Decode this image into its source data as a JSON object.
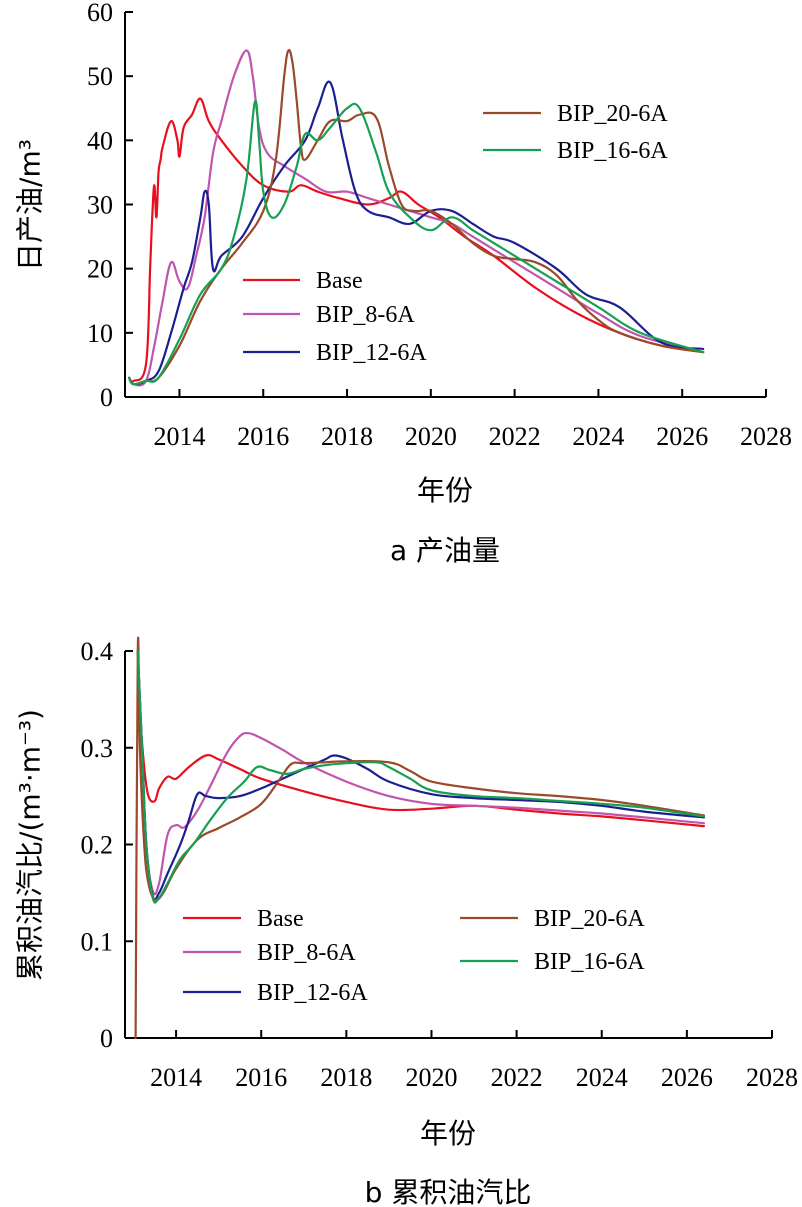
{
  "colors": {
    "Base": "#e8101e",
    "BIP_8-6A": "#c055b0",
    "BIP_12-6A": "#1b1f8f",
    "BIP_20-6A": "#9a4a2a",
    "BIP_16-6A": "#17a052"
  },
  "chart_data": [
    {
      "type": "line",
      "caption": "a 产油量",
      "xlabel": "年份",
      "ylabel": "日产油/m³",
      "xlim": [
        2012.7,
        2028
      ],
      "ylim": [
        0,
        60
      ],
      "xticks": [
        2014,
        2016,
        2018,
        2020,
        2022,
        2024,
        2026,
        2028
      ],
      "yticks": [
        0,
        10,
        20,
        30,
        40,
        50,
        60
      ],
      "xtick_labels": [
        "2014",
        "2016",
        "2018",
        "2020",
        "2022",
        "2024",
        "2026",
        "2028"
      ],
      "ytick_labels": [
        "0",
        "10",
        "20",
        "30",
        "40",
        "50",
        "60"
      ],
      "legend": [
        {
          "name": "Base"
        },
        {
          "name": "BIP_8-6A"
        },
        {
          "name": "BIP_12-6A"
        },
        {
          "name": "BIP_20-6A"
        },
        {
          "name": "BIP_16-6A"
        }
      ],
      "series": [
        {
          "name": "Base",
          "x": [
            2012.8,
            2012.9,
            2013.2,
            2013.3,
            2013.35,
            2013.4,
            2013.45,
            2013.5,
            2013.55,
            2013.6,
            2013.8,
            2013.95,
            2014.0,
            2014.1,
            2014.3,
            2014.5,
            2014.7,
            2015.0,
            2015.5,
            2016.0,
            2016.6,
            2016.9,
            2017.3,
            2017.8,
            2018.5,
            2019.0,
            2019.3,
            2019.7,
            2020.2,
            2020.8,
            2021.5,
            2022.5,
            2023.5,
            2024.5,
            2025.5,
            2026.5
          ],
          "y": [
            3,
            2.5,
            5,
            20,
            28,
            33,
            28,
            35,
            37,
            39,
            43,
            40,
            37.5,
            42,
            44,
            46.5,
            43,
            40,
            36,
            33,
            32,
            33,
            32,
            31,
            30,
            31,
            32,
            30,
            28,
            25,
            22,
            17,
            13,
            10,
            8,
            7
          ]
        },
        {
          "name": "BIP_8-6A",
          "x": [
            2012.8,
            2012.9,
            2013.2,
            2013.4,
            2013.6,
            2013.8,
            2014.0,
            2014.2,
            2014.4,
            2014.6,
            2014.8,
            2015.0,
            2015.3,
            2015.6,
            2015.75,
            2015.9,
            2016.1,
            2016.5,
            2017.0,
            2017.5,
            2018.0,
            2018.5,
            2019.0,
            2019.5,
            2020.0,
            2020.5,
            2021.0,
            2022.0,
            2023.0,
            2024.0,
            2025.0,
            2026.5
          ],
          "y": [
            3,
            2,
            2.5,
            8,
            15,
            21,
            18,
            17,
            22,
            28,
            38,
            43,
            50,
            54,
            50,
            42,
            38,
            36,
            34,
            32,
            32,
            31,
            30,
            29,
            28,
            27,
            25,
            21,
            17,
            13,
            9.5,
            7
          ]
        },
        {
          "name": "BIP_12-6A",
          "x": [
            2012.8,
            2012.9,
            2013.2,
            2013.5,
            2013.8,
            2014.1,
            2014.3,
            2014.5,
            2014.6,
            2014.7,
            2014.8,
            2015.0,
            2015.5,
            2016.0,
            2016.5,
            2017.0,
            2017.3,
            2017.6,
            2017.9,
            2018.2,
            2018.5,
            2019.0,
            2019.5,
            2020.0,
            2020.5,
            2021.0,
            2021.5,
            2022.0,
            2023.0,
            2023.7,
            2024.5,
            2025.5,
            2026.5
          ],
          "y": [
            3,
            2,
            2.5,
            4,
            10,
            17,
            21,
            28,
            32,
            30,
            20,
            22,
            25,
            31,
            36,
            40,
            45,
            49,
            40,
            32,
            29,
            28,
            27,
            29,
            29,
            27,
            25,
            24,
            20,
            16,
            14,
            8.5,
            7.5
          ]
        },
        {
          "name": "BIP_20-6A",
          "x": [
            2012.8,
            2012.9,
            2013.2,
            2013.5,
            2014.0,
            2014.5,
            2015.0,
            2015.5,
            2016.0,
            2016.3,
            2016.5,
            2016.6,
            2016.7,
            2016.8,
            2016.9,
            2017.0,
            2017.3,
            2017.6,
            2018.0,
            2018.3,
            2018.7,
            2019.0,
            2019.3,
            2019.6,
            2020.0,
            2020.5,
            2021.0,
            2021.5,
            2022.0,
            2022.5,
            2023.0,
            2023.5,
            2024.0,
            2024.5,
            2025.5,
            2026.5
          ],
          "y": [
            3,
            2,
            2.5,
            3,
            8,
            15,
            20,
            24,
            29,
            37,
            50,
            54,
            52,
            46,
            39,
            37,
            40,
            43,
            43,
            44,
            43.5,
            36,
            30,
            29,
            29,
            27,
            24,
            22,
            21.5,
            21,
            19,
            15,
            12,
            10,
            8,
            7
          ]
        },
        {
          "name": "BIP_16-6A",
          "x": [
            2012.8,
            2012.9,
            2013.2,
            2013.5,
            2014.0,
            2014.5,
            2015.0,
            2015.3,
            2015.6,
            2015.8,
            2015.9,
            2016.0,
            2016.2,
            2016.5,
            2016.8,
            2017.0,
            2017.3,
            2017.6,
            2018.0,
            2018.3,
            2018.7,
            2019.0,
            2019.5,
            2020.0,
            2020.5,
            2021.0,
            2021.5,
            2022.0,
            2023.0,
            2024.0,
            2025.0,
            2026.5
          ],
          "y": [
            3,
            2,
            2.5,
            3,
            9,
            16,
            20,
            25,
            34,
            46,
            40,
            32,
            28,
            30,
            36,
            41,
            40,
            42,
            45,
            45,
            38,
            32,
            28,
            26,
            28,
            26,
            24,
            22,
            18,
            14,
            10,
            7
          ]
        }
      ]
    },
    {
      "type": "line",
      "caption": "b 累积油汽比",
      "xlabel": "年份",
      "ylabel": "累积油汽比/(m³·m⁻³)",
      "xlim": [
        2012.8,
        2028
      ],
      "ylim": [
        0,
        0.4
      ],
      "xticks": [
        2014,
        2016,
        2018,
        2020,
        2022,
        2024,
        2026,
        2028
      ],
      "yticks": [
        0,
        0.1,
        0.2,
        0.3,
        0.4
      ],
      "xtick_labels": [
        "2014",
        "2016",
        "2018",
        "2020",
        "2022",
        "2024",
        "2026",
        "2028"
      ],
      "ytick_labels": [
        "0",
        "0.1",
        "0.2",
        "0.3",
        "0.4"
      ],
      "legend": [
        {
          "name": "Base"
        },
        {
          "name": "BIP_8-6A"
        },
        {
          "name": "BIP_12-6A"
        },
        {
          "name": "BIP_20-6A"
        },
        {
          "name": "BIP_16-6A"
        }
      ],
      "series": [
        {
          "name": "Base",
          "x": [
            2013.1,
            2013.15,
            2013.25,
            2013.35,
            2013.5,
            2013.6,
            2013.8,
            2014.0,
            2014.3,
            2014.7,
            2015.0,
            2015.5,
            2016.0,
            2017.0,
            2018.0,
            2019.0,
            2020.0,
            2021.0,
            2022.0,
            2023.0,
            2024.0,
            2025.0,
            2026.4
          ],
          "y": [
            0.4,
            0.34,
            0.28,
            0.25,
            0.245,
            0.258,
            0.27,
            0.268,
            0.28,
            0.292,
            0.288,
            0.278,
            0.268,
            0.255,
            0.244,
            0.236,
            0.237,
            0.24,
            0.236,
            0.232,
            0.229,
            0.225,
            0.219
          ]
        },
        {
          "name": "BIP_8-6A",
          "x": [
            2013.1,
            2013.2,
            2013.3,
            2013.45,
            2013.6,
            2013.8,
            2014.0,
            2014.2,
            2014.5,
            2014.8,
            2015.2,
            2015.5,
            2015.7,
            2016.0,
            2016.5,
            2017.0,
            2018.0,
            2019.0,
            2020.0,
            2021.0,
            2022.0,
            2023.0,
            2024.0,
            2025.0,
            2026.4
          ],
          "y": [
            0.4,
            0.3,
            0.2,
            0.152,
            0.16,
            0.21,
            0.22,
            0.218,
            0.235,
            0.26,
            0.295,
            0.312,
            0.315,
            0.31,
            0.298,
            0.285,
            0.265,
            0.25,
            0.242,
            0.24,
            0.238,
            0.235,
            0.232,
            0.228,
            0.222
          ]
        },
        {
          "name": "BIP_12-6A",
          "x": [
            2013.1,
            2013.2,
            2013.3,
            2013.45,
            2013.6,
            2013.8,
            2014.1,
            2014.3,
            2014.5,
            2014.7,
            2015.0,
            2015.5,
            2016.0,
            2016.5,
            2017.0,
            2017.5,
            2017.7,
            2018.0,
            2018.5,
            2019.0,
            2020.0,
            2021.0,
            2022.0,
            2023.0,
            2024.0,
            2025.0,
            2026.4
          ],
          "y": [
            0.4,
            0.3,
            0.2,
            0.147,
            0.15,
            0.17,
            0.2,
            0.225,
            0.252,
            0.25,
            0.248,
            0.25,
            0.258,
            0.268,
            0.278,
            0.288,
            0.292,
            0.289,
            0.278,
            0.265,
            0.252,
            0.248,
            0.246,
            0.244,
            0.24,
            0.234,
            0.228
          ]
        },
        {
          "name": "BIP_20-6A",
          "x": [
            2013.05,
            2013.1,
            2013.15,
            2013.25,
            2013.35,
            2013.5,
            2013.7,
            2014.0,
            2014.5,
            2015.0,
            2015.5,
            2016.0,
            2016.4,
            2016.7,
            2017.0,
            2017.5,
            2018.0,
            2019.0,
            2019.5,
            2020.0,
            2021.0,
            2022.0,
            2023.0,
            2024.0,
            2025.0,
            2026.4
          ],
          "y": [
            0.0,
            0.4,
            0.3,
            0.2,
            0.16,
            0.143,
            0.15,
            0.175,
            0.205,
            0.217,
            0.228,
            0.242,
            0.265,
            0.283,
            0.284,
            0.285,
            0.286,
            0.285,
            0.276,
            0.265,
            0.258,
            0.253,
            0.25,
            0.246,
            0.24,
            0.23
          ]
        },
        {
          "name": "BIP_16-6A",
          "x": [
            2013.1,
            2013.2,
            2013.3,
            2013.45,
            2013.6,
            2013.8,
            2014.1,
            2014.4,
            2014.8,
            2015.2,
            2015.6,
            2015.9,
            2016.2,
            2016.6,
            2017.0,
            2017.5,
            2018.0,
            2018.7,
            2019.0,
            2019.5,
            2020.0,
            2021.0,
            2022.0,
            2023.0,
            2024.0,
            2025.0,
            2026.4
          ],
          "y": [
            0.4,
            0.3,
            0.2,
            0.145,
            0.145,
            0.16,
            0.185,
            0.2,
            0.225,
            0.248,
            0.265,
            0.28,
            0.277,
            0.273,
            0.278,
            0.282,
            0.284,
            0.285,
            0.28,
            0.268,
            0.256,
            0.25,
            0.248,
            0.245,
            0.242,
            0.238,
            0.229
          ]
        }
      ]
    }
  ]
}
